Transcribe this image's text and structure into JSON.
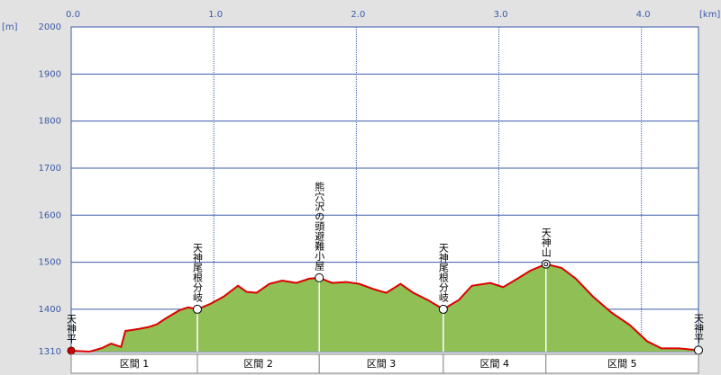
{
  "chart_data": {
    "type": "area",
    "x_unit": "[km]",
    "y_unit": "[m]",
    "xlim": [
      0,
      4.4
    ],
    "xticks": [
      {
        "value": 0,
        "label": "0.0"
      },
      {
        "value": 1,
        "label": "1.0"
      },
      {
        "value": 2,
        "label": "2.0"
      },
      {
        "value": 3,
        "label": "3.0"
      },
      {
        "value": 4,
        "label": "4.0"
      }
    ],
    "ylim": [
      1310,
      2000
    ],
    "yticks": [
      1310,
      1400,
      1500,
      1600,
      1700,
      1800,
      1900,
      2000
    ],
    "grid": true,
    "series": [
      {
        "color": "#dd0000",
        "fill": "#8fbf55",
        "x": [
          0,
          0.13,
          0.22,
          0.28,
          0.35,
          0.38,
          0.47,
          0.54,
          0.6,
          0.66,
          0.76,
          0.82,
          0.885,
          0.98,
          1.07,
          1.17,
          1.23,
          1.3,
          1.39,
          1.48,
          1.58,
          1.67,
          1.74,
          1.83,
          1.93,
          2.02,
          2.12,
          2.21,
          2.31,
          2.4,
          2.5,
          2.61,
          2.72,
          2.81,
          2.94,
          3.03,
          3.13,
          3.22,
          3.33,
          3.44,
          3.54,
          3.66,
          3.79,
          3.92,
          4.04,
          4.14,
          4.26,
          4.4
        ],
        "values": [
          1312,
          1310,
          1318,
          1327,
          1320,
          1354,
          1358,
          1362,
          1368,
          1380,
          1398,
          1404,
          1400,
          1412,
          1427,
          1450,
          1437,
          1435,
          1454,
          1461,
          1456,
          1465,
          1467,
          1456,
          1458,
          1454,
          1443,
          1435,
          1454,
          1435,
          1420,
          1400,
          1420,
          1450,
          1456,
          1447,
          1465,
          1482,
          1496,
          1488,
          1465,
          1427,
          1393,
          1366,
          1332,
          1317,
          1317,
          1313
        ]
      }
    ],
    "waypoints": [
      {
        "name": "天神平",
        "x": 0,
        "elevation": 1312,
        "marker": "flag"
      },
      {
        "name": "天神尾根分岐",
        "x": 0.885,
        "elevation": 1400,
        "marker": "circle"
      },
      {
        "name": "熊穴沢の頭避難小屋",
        "x": 1.74,
        "elevation": 1467,
        "marker": "circle"
      },
      {
        "name": "天神尾根分岐",
        "x": 2.61,
        "elevation": 1400,
        "marker": "circle"
      },
      {
        "name": "天神山",
        "x": 3.33,
        "elevation": 1496,
        "marker": "double-circle"
      },
      {
        "name": "天神平",
        "x": 4.4,
        "elevation": 1313,
        "marker": "circle"
      }
    ],
    "sections": [
      "区間 1",
      "区間 2",
      "区間 3",
      "区間 4",
      "区間 5"
    ]
  }
}
